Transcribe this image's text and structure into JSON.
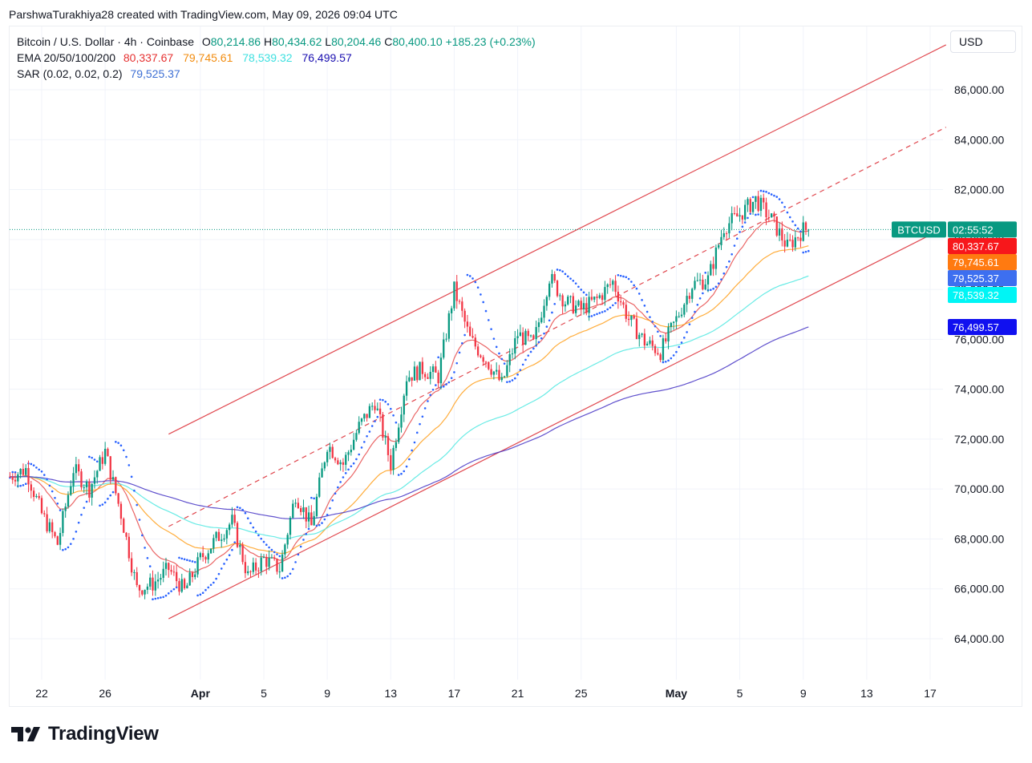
{
  "caption": "ParshwaTurakhiya28 created with TradingView.com, May 09, 2026 09:04 UTC",
  "legend": {
    "symbol_line": "Bitcoin / U.S. Dollar · 4h · Coinbase",
    "ohlc": {
      "o_label": "O",
      "o": "80,214.86",
      "h_label": "H",
      "h": "80,434.62",
      "l_label": "L",
      "l": "80,204.46",
      "c_label": "C",
      "c": "80,400.10",
      "change": "+185.23 (+0.23%)"
    },
    "ema_label": "EMA 20/50/100/200",
    "ema_values": [
      "80,337.67",
      "79,745.61",
      "78,539.32",
      "76,499.57"
    ],
    "sar_label": "SAR (0.02, 0.02, 0.2)",
    "sar_value": "79,525.37"
  },
  "currency": "USD",
  "logo_text": "TradingView",
  "logo_icon": "tradingview-logo-icon",
  "price_tags": {
    "symbol": "BTCUSD",
    "countdown": "02:55:52",
    "ema20": "80,337.67",
    "ema50": "79,745.61",
    "sar": "79,525.37",
    "ema100": "78,539.32",
    "ema200": "76,499.57"
  },
  "colors": {
    "up": "#089981",
    "down": "#f23645",
    "ema20": "#e64a4a",
    "ema50": "#ff9f1a",
    "ema100": "#4ee8e0",
    "ema200": "#4433c4",
    "sar": "#2962ff",
    "channel": "#e0484f",
    "grid": "#f0f3fa",
    "price_line": "#089981"
  },
  "chart_data": {
    "type": "candlestick",
    "symbol": "BTCUSD",
    "interval": "4h",
    "ylim": [
      63000,
      87000
    ],
    "yticks": [
      64000,
      66000,
      68000,
      70000,
      72000,
      74000,
      76000,
      78000,
      80000,
      82000,
      84000,
      86000
    ],
    "ytick_labels": [
      "64,000.00",
      "66,000.00",
      "68,000.00",
      "70,000.00",
      "72,000.00",
      "74,000.00",
      "76,000.00",
      "78,000.00",
      "80,000.00",
      "82,000.00",
      "84,000.00",
      "86,000.00"
    ],
    "xticks": [
      {
        "label": "22",
        "date": "2026-03-22",
        "bold": false
      },
      {
        "label": "26",
        "date": "2026-03-26",
        "bold": false
      },
      {
        "label": "Apr",
        "date": "2026-04-01",
        "bold": true
      },
      {
        "label": "5",
        "date": "2026-04-05",
        "bold": false
      },
      {
        "label": "9",
        "date": "2026-04-09",
        "bold": false
      },
      {
        "label": "13",
        "date": "2026-04-13",
        "bold": false
      },
      {
        "label": "17",
        "date": "2026-04-17",
        "bold": false
      },
      {
        "label": "21",
        "date": "2026-04-21",
        "bold": false
      },
      {
        "label": "25",
        "date": "2026-04-25",
        "bold": false
      },
      {
        "label": "May",
        "date": "2026-05-01",
        "bold": true
      },
      {
        "label": "5",
        "date": "2026-05-05",
        "bold": false
      },
      {
        "label": "9",
        "date": "2026-05-09",
        "bold": false
      },
      {
        "label": "13",
        "date": "2026-05-13",
        "bold": false
      },
      {
        "label": "17",
        "date": "2026-05-17",
        "bold": false
      }
    ],
    "xlim": [
      "2026-03-20",
      "2026-05-18"
    ],
    "last_price": 80400.1,
    "close_anchors": [
      [
        "2026-03-20",
        70500
      ],
      [
        "2026-03-21",
        70800
      ],
      [
        "2026-03-22",
        69000
      ],
      [
        "2026-03-23",
        67800
      ],
      [
        "2026-03-24",
        70800
      ],
      [
        "2026-03-25",
        70000
      ],
      [
        "2026-03-26",
        71500
      ],
      [
        "2026-03-27",
        69000
      ],
      [
        "2026-03-28",
        66000
      ],
      [
        "2026-03-29",
        66200
      ],
      [
        "2026-03-30",
        66800
      ],
      [
        "2026-03-31",
        65900
      ],
      [
        "2026-04-01",
        67200
      ],
      [
        "2026-04-02",
        68000
      ],
      [
        "2026-04-03",
        68700
      ],
      [
        "2026-04-04",
        66500
      ],
      [
        "2026-04-05",
        67200
      ],
      [
        "2026-04-06",
        66800
      ],
      [
        "2026-04-07",
        69800
      ],
      [
        "2026-04-08",
        68500
      ],
      [
        "2026-04-09",
        71800
      ],
      [
        "2026-04-10",
        71000
      ],
      [
        "2026-04-11",
        72500
      ],
      [
        "2026-04-12",
        73500
      ],
      [
        "2026-04-13",
        71000
      ],
      [
        "2026-04-14",
        74500
      ],
      [
        "2026-04-15",
        74800
      ],
      [
        "2026-04-16",
        74500
      ],
      [
        "2026-04-17",
        78000
      ],
      [
        "2026-04-18",
        76000
      ],
      [
        "2026-04-19",
        75200
      ],
      [
        "2026-04-20",
        74200
      ],
      [
        "2026-04-21",
        76200
      ],
      [
        "2026-04-22",
        75800
      ],
      [
        "2026-04-23",
        78500
      ],
      [
        "2026-04-24",
        77500
      ],
      [
        "2026-04-25",
        77200
      ],
      [
        "2026-04-26",
        77600
      ],
      [
        "2026-04-27",
        78300
      ],
      [
        "2026-04-28",
        76800
      ],
      [
        "2026-04-29",
        75900
      ],
      [
        "2026-04-30",
        75500
      ],
      [
        "2026-05-01",
        76800
      ],
      [
        "2026-05-02",
        78200
      ],
      [
        "2026-05-03",
        78400
      ],
      [
        "2026-05-04",
        80500
      ],
      [
        "2026-05-05",
        81000
      ],
      [
        "2026-05-06",
        81600
      ],
      [
        "2026-05-07",
        80800
      ],
      [
        "2026-05-08",
        79700
      ],
      [
        "2026-05-09",
        80400
      ]
    ],
    "ema_endpoints": {
      "ema20": 80337.67,
      "ema50": 79745.61,
      "ema100": 78539.32,
      "ema200": 76499.57
    },
    "sar_last": 79525.37,
    "channel": {
      "upper": [
        [
          "2026-03-30",
          72200
        ],
        [
          "2026-05-18",
          87800
        ]
      ],
      "middle_dashed": [
        [
          "2026-03-30",
          68500
        ],
        [
          "2026-05-18",
          84500
        ]
      ],
      "lower": [
        [
          "2026-03-30",
          64800
        ],
        [
          "2026-05-18",
          80500
        ]
      ]
    }
  }
}
